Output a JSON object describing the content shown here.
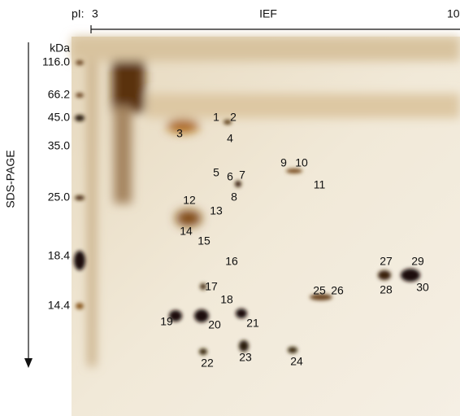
{
  "header": {
    "pi_label": "pI:",
    "pi_start": "3",
    "axis_title": "IEF",
    "pi_end": "10"
  },
  "left_axis": {
    "unit": "kDa",
    "title": "SDS-PAGE",
    "markers": [
      "116.0",
      "66.2",
      "45.0",
      "35.0",
      "25.0",
      "18.4",
      "14.4"
    ]
  },
  "spots": [
    "1",
    "2",
    "3",
    "4",
    "5",
    "6",
    "7",
    "8",
    "9",
    "10",
    "11",
    "12",
    "13",
    "14",
    "15",
    "16",
    "17",
    "18",
    "19",
    "20",
    "21",
    "22",
    "23",
    "24",
    "25",
    "26",
    "27",
    "28",
    "29",
    "30"
  ]
}
